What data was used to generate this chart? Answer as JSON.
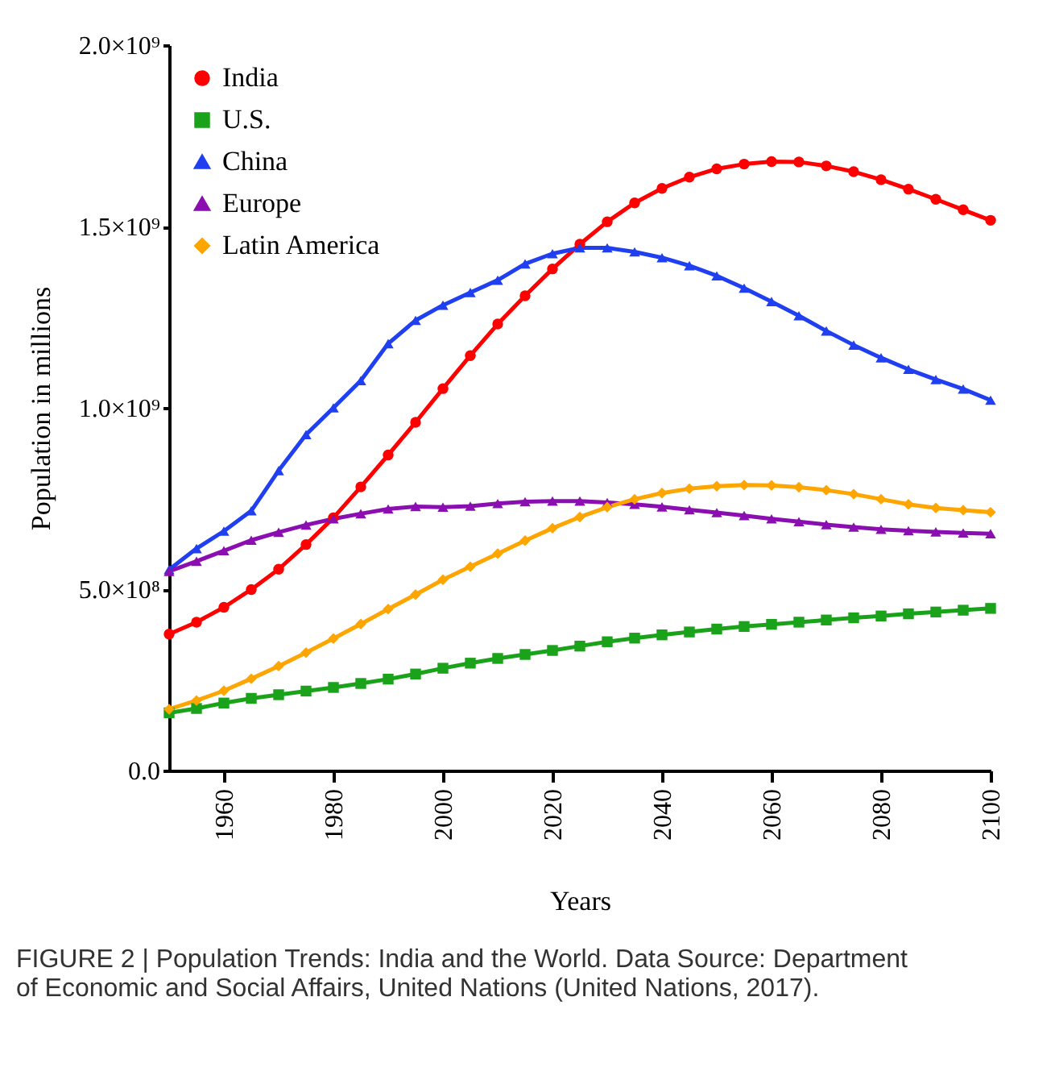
{
  "chart_data": {
    "type": "line",
    "xlabel": "Years",
    "ylabel": "Population in millions",
    "x": [
      1950,
      1955,
      1960,
      1965,
      1970,
      1975,
      1980,
      1985,
      1990,
      1995,
      2000,
      2005,
      2010,
      2015,
      2020,
      2025,
      2030,
      2035,
      2040,
      2045,
      2050,
      2055,
      2060,
      2065,
      2070,
      2075,
      2080,
      2085,
      2090,
      2095,
      2100
    ],
    "series": [
      {
        "name": "India",
        "color": "#ff0000",
        "marker": "circle",
        "values": [
          376000000,
          409000000,
          450000000,
          499000000,
          555000000,
          623000000,
          697000000,
          782000000,
          870000000,
          960000000,
          1053000000,
          1144000000,
          1231000000,
          1309000000,
          1383000000,
          1451000000,
          1513000000,
          1565000000,
          1605000000,
          1636000000,
          1659000000,
          1672000000,
          1679000000,
          1678000000,
          1667000000,
          1651000000,
          1629000000,
          1603000000,
          1575000000,
          1546000000,
          1517000000
        ]
      },
      {
        "name": "U.S.",
        "color": "#1aa31a",
        "marker": "square",
        "values": [
          159000000,
          171000000,
          186000000,
          199000000,
          209000000,
          219000000,
          229000000,
          240000000,
          252000000,
          266000000,
          282000000,
          296000000,
          309000000,
          320000000,
          331000000,
          343000000,
          355000000,
          365000000,
          374000000,
          382000000,
          390000000,
          397000000,
          403000000,
          409000000,
          415000000,
          421000000,
          426000000,
          432000000,
          437000000,
          442000000,
          447000000
        ]
      },
      {
        "name": "China",
        "color": "#1f3ff0",
        "marker": "triangle",
        "values": [
          554000000,
          612000000,
          660000000,
          716000000,
          827000000,
          926000000,
          1000000000,
          1075000000,
          1177000000,
          1241000000,
          1283000000,
          1318000000,
          1352000000,
          1397000000,
          1425000000,
          1441000000,
          1441000000,
          1430000000,
          1414000000,
          1392000000,
          1364000000,
          1330000000,
          1293000000,
          1254000000,
          1212000000,
          1173000000,
          1138000000,
          1106000000,
          1078000000,
          1052000000,
          1021000000
        ]
      },
      {
        "name": "Europe",
        "color": "#8b0fb0",
        "marker": "triangle",
        "values": [
          549000000,
          577000000,
          606000000,
          635000000,
          657000000,
          677000000,
          694000000,
          708000000,
          721000000,
          728000000,
          726000000,
          729000000,
          736000000,
          741000000,
          743000000,
          743000000,
          739000000,
          734000000,
          727000000,
          719000000,
          711000000,
          703000000,
          694000000,
          686000000,
          678000000,
          671000000,
          665000000,
          661000000,
          658000000,
          655000000,
          653000000
        ]
      },
      {
        "name": "Latin America",
        "color": "#ffa500",
        "marker": "diamond",
        "values": [
          169000000,
          193000000,
          220000000,
          253000000,
          288000000,
          325000000,
          364000000,
          404000000,
          445000000,
          485000000,
          526000000,
          562000000,
          598000000,
          634000000,
          668000000,
          699000000,
          726000000,
          748000000,
          765000000,
          777000000,
          784000000,
          787000000,
          786000000,
          781000000,
          773000000,
          762000000,
          748000000,
          734000000,
          724000000,
          718000000,
          712000000
        ]
      }
    ],
    "xlim": [
      1950,
      2100
    ],
    "xticks": [
      1960,
      1980,
      2000,
      2020,
      2040,
      2060,
      2080,
      2100
    ],
    "ylim": [
      0,
      2000000000
    ],
    "yticks": [
      {
        "value": 0,
        "label": "0.0"
      },
      {
        "value": 500000000,
        "label": "5.0×10⁸"
      },
      {
        "value": 1000000000,
        "label": "1.0×10⁹"
      },
      {
        "value": 1500000000,
        "label": "1.5×10⁹"
      },
      {
        "value": 2000000000,
        "label": "2.0×10⁹"
      }
    ],
    "grid": false,
    "legend": "top left",
    "line_style": "solid",
    "annotations": [
      "FIGURE 2 | Population Trends: India and the World. Data Source: Department of Economic and Social Affairs, United Nations (United Nations, 2017)."
    ]
  }
}
